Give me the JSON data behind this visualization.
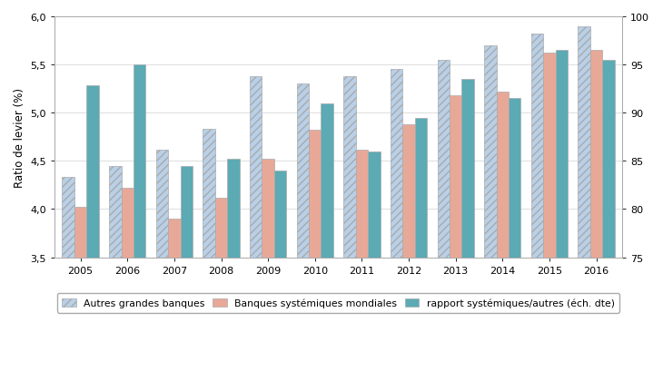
{
  "years": [
    2005,
    2006,
    2007,
    2008,
    2009,
    2010,
    2011,
    2012,
    2013,
    2014,
    2015,
    2016
  ],
  "autres_grandes_banques": [
    4.33,
    4.45,
    4.62,
    4.83,
    5.38,
    5.3,
    5.38,
    5.45,
    5.55,
    5.7,
    5.82,
    5.9
  ],
  "banques_systemiques": [
    4.02,
    4.22,
    3.9,
    4.12,
    4.52,
    4.82,
    4.62,
    4.88,
    5.18,
    5.22,
    5.62,
    5.65
  ],
  "rapport_systemiques_pct": [
    92.8,
    95.0,
    84.5,
    85.2,
    84.0,
    91.0,
    86.0,
    89.5,
    93.5,
    91.5,
    96.5,
    95.5
  ],
  "color_autres": "#b8d0e8",
  "color_systemiques": "#e8a898",
  "color_rapport": "#5bagb4",
  "color_rapport_hex": "#5baab4",
  "ylabel_left": "Ratio de levier (%)",
  "ylim_left": [
    3.5,
    6.0
  ],
  "ylim_right": [
    75,
    100
  ],
  "yticks_left": [
    3.5,
    4.0,
    4.5,
    5.0,
    5.5,
    6.0
  ],
  "yticks_right": [
    75,
    80,
    85,
    90,
    95,
    100
  ],
  "legend_labels": [
    "Autres grandes banques",
    "Banques systémiques mondiales",
    "rapport systémiques/autres (éch. dte)"
  ],
  "background_color": "#ffffff",
  "bar_width": 0.26,
  "hatch_pattern": "////",
  "edge_color": "#aaaaaa",
  "grid_color": "#d0d0d0"
}
